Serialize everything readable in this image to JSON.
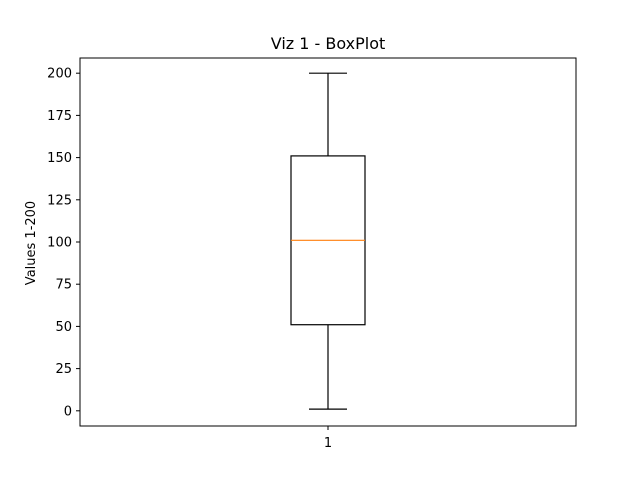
{
  "chart_data": {
    "type": "boxplot",
    "title": "Viz 1 - BoxPlot",
    "xlabel": "",
    "ylabel": "Values 1-200",
    "categories": [
      "1"
    ],
    "boxes": [
      {
        "category": "1",
        "whisker_low": 1,
        "q1": 51,
        "median": 101,
        "q3": 151,
        "whisker_high": 200
      }
    ],
    "ylim": [
      -9,
      209
    ],
    "yticks": [
      0,
      25,
      50,
      75,
      100,
      125,
      150,
      175,
      200
    ],
    "grid": false,
    "colors": {
      "box": "#000000",
      "median": "#ff7f0e",
      "whisker": "#000000"
    }
  }
}
